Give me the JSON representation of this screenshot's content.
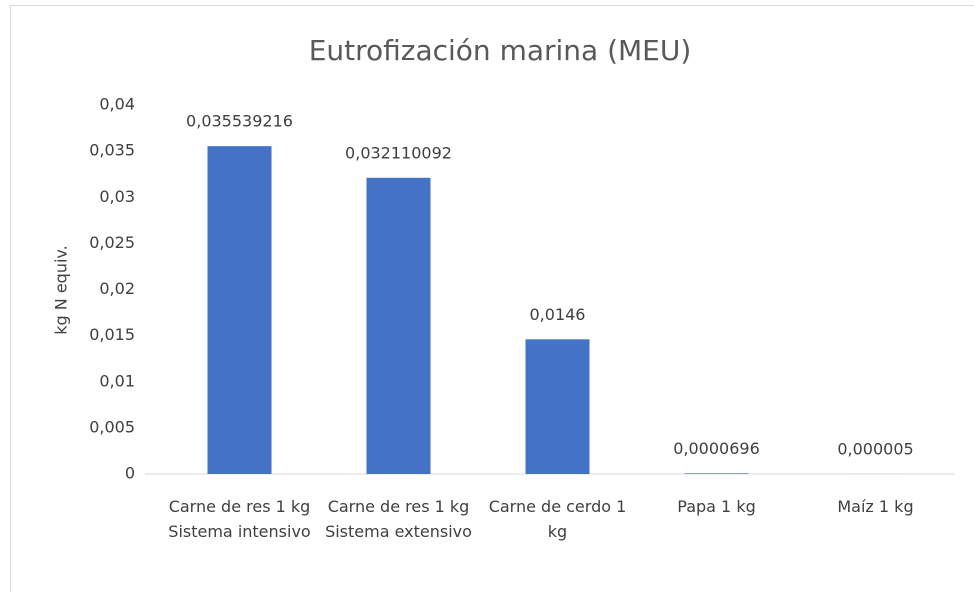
{
  "chart_data": {
    "type": "bar",
    "title": "Eutrofización marina (MEU)",
    "y_label": "kg N equiv.",
    "categories": [
      "Carne de res 1 kg Sistema intensivo",
      "Carne de res 1 kg Sistema extensivo",
      "Carne de cerdo 1 kg",
      "Papa 1 kg",
      "Maíz 1 kg"
    ],
    "values": [
      0.035539216,
      0.032110092,
      0.0146,
      6.96e-05,
      5e-06
    ],
    "value_labels": [
      "0,035539216",
      "0,032110092",
      "0,0146",
      "0,0000696",
      "0,000005"
    ],
    "color": "#4472c4",
    "ylim": [
      0,
      0.04
    ],
    "yticks": [
      0,
      {
        "value": 0.005,
        "label": "0,005"
      },
      {
        "value": 0.01,
        "label": "0,01"
      },
      {
        "value": 0.015,
        "label": "0,015"
      },
      {
        "value": 0.02,
        "label": "0,02"
      },
      {
        "value": 0.025,
        "label": "0,025"
      },
      {
        "value": 0.03,
        "label": "0,03"
      },
      {
        "value": 0.035,
        "label": "0,035"
      },
      {
        "value": 0.04,
        "label": "0,04"
      }
    ],
    "grid": false
  }
}
